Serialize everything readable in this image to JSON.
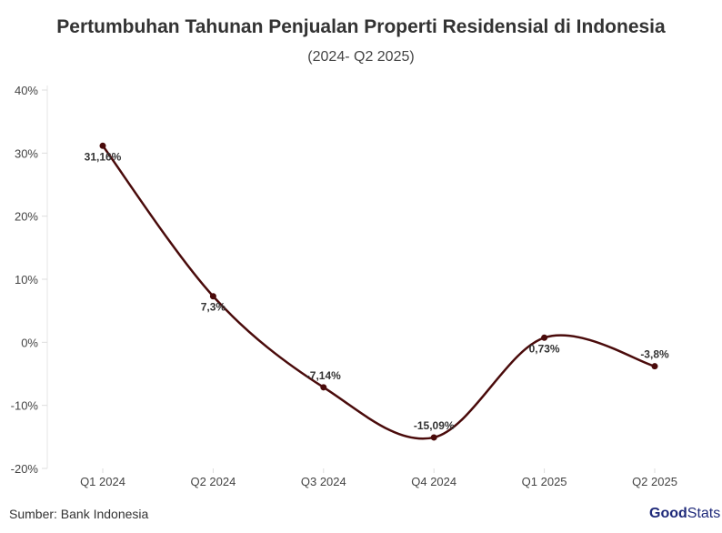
{
  "chart_data": {
    "type": "line",
    "title": "Pertumbuhan Tahunan Penjualan Properti Residensial di Indonesia",
    "subtitle": "(2024- Q2 2025)",
    "categories": [
      "Q1 2024",
      "Q2 2024",
      "Q3 2024",
      "Q4 2024",
      "Q1 2025",
      "Q2 2025"
    ],
    "values": [
      31.16,
      7.3,
      -7.14,
      -15.09,
      0.73,
      -3.8
    ],
    "data_labels": [
      "31,16%",
      "7,3%",
      "-7,14%",
      "-15,09%",
      "0,73%",
      "-3,8%"
    ],
    "y_ticks": [
      40,
      30,
      20,
      10,
      0,
      -10,
      -20
    ],
    "y_tick_labels": [
      "40%",
      "30%",
      "20%",
      "10%",
      "0%",
      "-10%",
      "-20%"
    ],
    "ylim": [
      -20,
      40
    ],
    "xlabel": "",
    "ylabel": "",
    "line_color": "#4a0b0b"
  },
  "source": "Sumber: Bank Indonesia",
  "logo": {
    "part1": "Good",
    "part2": "Stats"
  }
}
